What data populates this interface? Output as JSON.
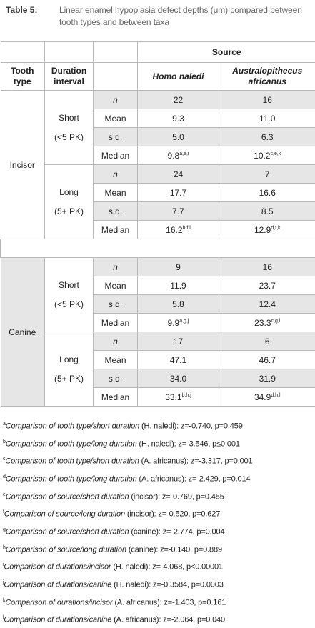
{
  "header": {
    "label": "Table 5:",
    "caption": "Linear enamel hypoplasia defect depths (μm) compared between tooth types and between taxa"
  },
  "table": {
    "source": "Source",
    "columns": {
      "tooth": "Tooth type",
      "duration": "Duration interval",
      "taxa": [
        "Homo naledi",
        "Australopithecus africanus"
      ]
    },
    "groups": [
      {
        "tooth": "Incisor",
        "durations": [
          {
            "label": [
              "Short",
              "(<5 PK)"
            ],
            "rows": [
              {
                "stat": "n",
                "values": [
                  "22",
                  "16"
                ]
              },
              {
                "stat": "Mean",
                "values": [
                  "9.3",
                  "11.0"
                ]
              },
              {
                "stat": "s.d.",
                "values": [
                  "5.0",
                  "6.3"
                ]
              },
              {
                "stat": "Median",
                "values": [
                  {
                    "value": "9.8",
                    "sup": "a,e,i"
                  },
                  {
                    "value": "10.2",
                    "sup": "c,e,k"
                  }
                ]
              }
            ]
          },
          {
            "label": [
              "Long",
              "(5+ PK)"
            ],
            "rows": [
              {
                "stat": "n",
                "values": [
                  "24",
                  "7"
                ]
              },
              {
                "stat": "Mean",
                "values": [
                  "17.7",
                  "16.6"
                ]
              },
              {
                "stat": "s.d.",
                "values": [
                  "7.7",
                  "8.5"
                ]
              },
              {
                "stat": "Median",
                "values": [
                  {
                    "value": "16.2",
                    "sup": "b,f,i"
                  },
                  {
                    "value": "12.9",
                    "sup": "d,f,k"
                  }
                ]
              }
            ]
          }
        ]
      },
      {
        "tooth": "Canine",
        "durations": [
          {
            "label": [
              "Short",
              "(<5 PK)"
            ],
            "rows": [
              {
                "stat": "n",
                "values": [
                  "9",
                  "16"
                ]
              },
              {
                "stat": "Mean",
                "values": [
                  "11.9",
                  "23.7"
                ]
              },
              {
                "stat": "s.d.",
                "values": [
                  "5.8",
                  "12.4"
                ]
              },
              {
                "stat": "Median",
                "values": [
                  {
                    "value": "9.9",
                    "sup": "a,g,j"
                  },
                  {
                    "value": "23.3",
                    "sup": "c,g,l"
                  }
                ]
              }
            ]
          },
          {
            "label": [
              "Long",
              "(5+ PK)"
            ],
            "rows": [
              {
                "stat": "n",
                "values": [
                  "17",
                  "6"
                ]
              },
              {
                "stat": "Mean",
                "values": [
                  "47.1",
                  "46.7"
                ]
              },
              {
                "stat": "s.d.",
                "values": [
                  "34.0",
                  "31.9"
                ]
              },
              {
                "stat": "Median",
                "values": [
                  {
                    "value": "33.1",
                    "sup": "b,h,j"
                  },
                  {
                    "value": "34.9",
                    "sup": "d,h,l"
                  }
                ]
              }
            ]
          }
        ]
      }
    ]
  },
  "footnotes": [
    {
      "mark": "a",
      "text": "Comparison of tooth type/short duration",
      "group": "(H. naledi)",
      "stats": ": z=-0.740, p=0.459"
    },
    {
      "mark": "b",
      "text": "Comparison of tooth type/long duration",
      "group": "(H. naledi)",
      "stats": ": z=-3.546, p≤0.001"
    },
    {
      "mark": "c",
      "text": "Comparison of tooth type/short duration",
      "group": "(A. africanus)",
      "stats": ": z=-3.317, p=0.001"
    },
    {
      "mark": "d",
      "text": "Comparison of tooth type/long duration",
      "group": "(A. africanus)",
      "stats": ": z=-2.429, p=0.014"
    },
    {
      "mark": "e",
      "text": "Comparison of source/short duration",
      "group": "(incisor)",
      "stats": ": z=-0.769, p=0.455"
    },
    {
      "mark": "f",
      "text": "Comparison of source/long duration",
      "group": "(incisor)",
      "stats": ": z=-0.520, p=0.627"
    },
    {
      "mark": "g",
      "text": "Comparison of source/short duration",
      "group": "(canine)",
      "stats": ": z=-2.774, p=0.004"
    },
    {
      "mark": "h",
      "text": "Comparison of source/long duration",
      "group": "(canine)",
      "stats": ": z=-0.140, p=0.889"
    },
    {
      "mark": "i",
      "text": "Comparison of durations/incisor",
      "group": "(H. naledi)",
      "stats": ": z=-4.068, p<0.00001"
    },
    {
      "mark": "j",
      "text": "Comparison of durations/canine",
      "group": "(H. naledi)",
      "stats": ": z=-0.3584, p=0.0003"
    },
    {
      "mark": "k",
      "text": "Comparison of durations/incisor",
      "group": "(A. africanus)",
      "stats": ": z=-1.403, p=0.161"
    },
    {
      "mark": "l",
      "text": "Comparison of durations/canine",
      "group": "(A. africanus)",
      "stats": ": z=-2.064, p=0.040"
    }
  ]
}
